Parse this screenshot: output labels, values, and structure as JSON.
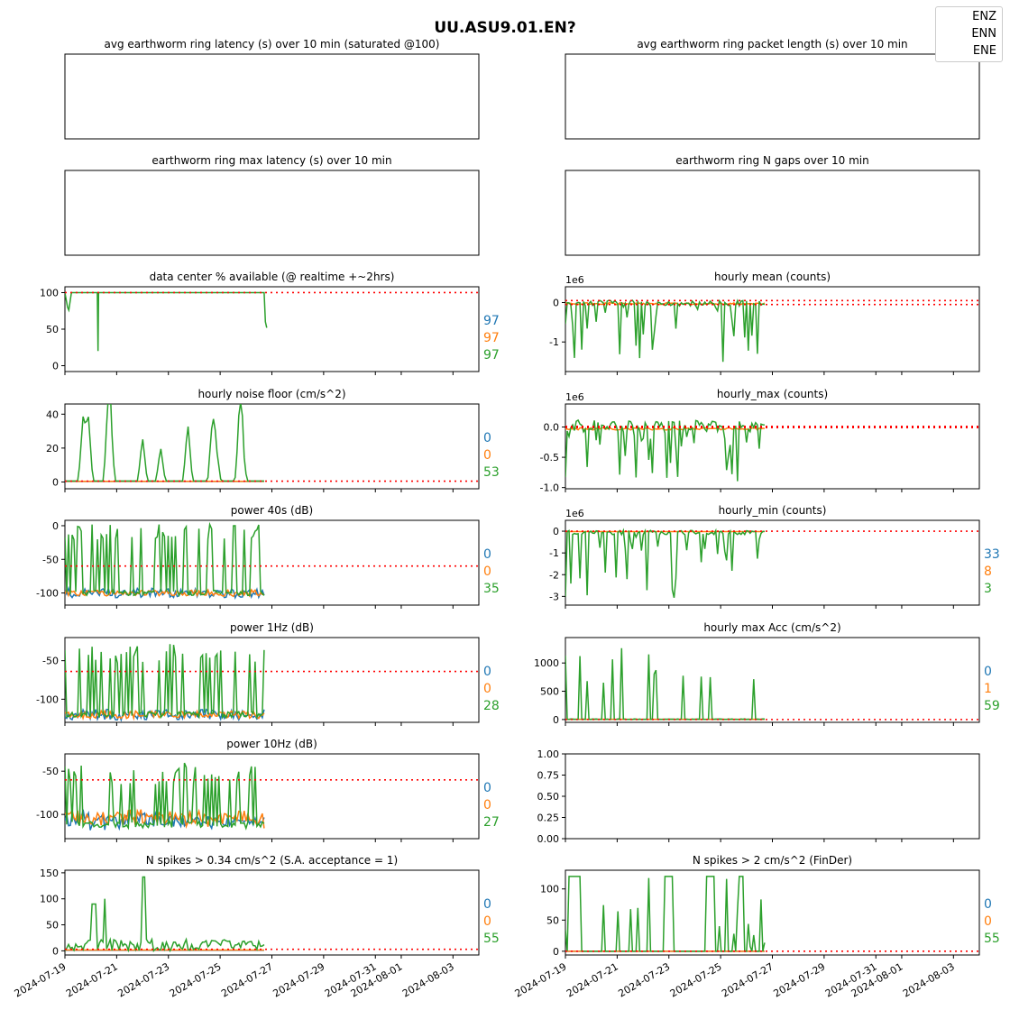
{
  "figure": {
    "suptitle": "UU.ASU9.01.EN?",
    "legend": [
      "ENZ",
      "ENN",
      "ENE"
    ],
    "series_colors": {
      "ENZ": "#1f77b4",
      "ENN": "#ff7f0e",
      "ENE": "#2ca02c",
      "threshold": "#ff0000"
    },
    "date_ticks": [
      "2024-07-19",
      "2024-07-21",
      "2024-07-23",
      "2024-07-25",
      "2024-07-27",
      "2024-07-29",
      "2024-07-31",
      "2024-08-01",
      "2024-08-03"
    ]
  },
  "chart_data": [
    {
      "id": "latency",
      "type": "line",
      "title": "avg earthworm ring latency (s)   over 10 min (saturated @100)",
      "empty": true
    },
    {
      "id": "packet",
      "type": "line",
      "title": "avg earthworm ring packet length (s)   over 10 min",
      "empty": true
    },
    {
      "id": "maxlat",
      "type": "line",
      "title": "earthworm ring max latency (s)   over 10 min",
      "empty": true
    },
    {
      "id": "ngaps",
      "type": "line",
      "title": "earthworm ring N gaps   over 10 min",
      "empty": true
    },
    {
      "id": "avail",
      "type": "line",
      "title": "data center % available (@ realtime +~2hrs)",
      "ylim": [
        -8,
        108
      ],
      "yticks": [
        0,
        50,
        100
      ],
      "threshold": 100,
      "side_values": [
        "97",
        "97",
        "97"
      ],
      "series": [
        {
          "name": "ENE",
          "x": [
            0,
            0.1,
            0.15,
            0.25,
            1.25,
            1.28,
            1.3,
            1.32,
            1.35,
            1.4,
            3,
            5,
            6,
            7.7,
            7.75,
            7.8
          ],
          "y": [
            100,
            80,
            76,
            100,
            100,
            20,
            100,
            100,
            100,
            100,
            100,
            100,
            100,
            100,
            60,
            52
          ]
        }
      ],
      "special": "avail_dip"
    },
    {
      "id": "mean",
      "type": "line",
      "title": "hourly mean (counts)",
      "exponent": "1e6",
      "ylim": [
        -1.75,
        0.4
      ],
      "yticks": [
        0,
        -1
      ],
      "threshold_pair": [
        0.05,
        -0.05
      ],
      "side_values": [],
      "kind": "mean"
    },
    {
      "id": "noise",
      "type": "line",
      "title": "hourly noise floor (cm/s^2)",
      "ylim": [
        -4,
        46
      ],
      "yticks": [
        0,
        20,
        40
      ],
      "threshold": 0.5,
      "side_values": [
        "0",
        "0",
        "53"
      ],
      "kind": "noise"
    },
    {
      "id": "hmax",
      "type": "line",
      "title": "hourly_max (counts)",
      "exponent": "1e6",
      "ylim": [
        -1.02,
        0.38
      ],
      "yticks": [
        0.0,
        -0.5,
        -1.0
      ],
      "threshold_pair": [
        0.01,
        -0.01
      ],
      "side_values": [],
      "kind": "hmax"
    },
    {
      "id": "p40",
      "type": "line",
      "title": "power 40s (dB)",
      "ylim": [
        -118,
        8
      ],
      "yticks": [
        0,
        -50,
        -100
      ],
      "threshold": -60,
      "side_values": [
        "0",
        "0",
        "35"
      ],
      "kind": "p40"
    },
    {
      "id": "hmin",
      "type": "line",
      "title": "hourly_min (counts)",
      "exponent": "1e6",
      "ylim": [
        -3.4,
        0.5
      ],
      "yticks": [
        0,
        -1,
        -2,
        -3
      ],
      "threshold": 0,
      "side_values": [
        "33",
        "8",
        "3"
      ],
      "kind": "hmin"
    },
    {
      "id": "p1",
      "type": "line",
      "title": "power 1Hz (dB)",
      "ylim": [
        -130,
        -20
      ],
      "yticks": [
        -50,
        -100
      ],
      "threshold": -64,
      "side_values": [
        "0",
        "0",
        "28"
      ],
      "kind": "p1"
    },
    {
      "id": "hacc",
      "type": "line",
      "title": "hourly max Acc (cm/s^2)",
      "ylim": [
        -50,
        1450
      ],
      "yticks": [
        0,
        500,
        1000
      ],
      "threshold": 0,
      "side_values": [
        "0",
        "1",
        "59"
      ],
      "kind": "hacc"
    },
    {
      "id": "p10",
      "type": "line",
      "title": "power 10Hz (dB)",
      "ylim": [
        -128,
        -30
      ],
      "yticks": [
        -50,
        -100
      ],
      "threshold": -60,
      "side_values": [
        "0",
        "0",
        "27"
      ],
      "kind": "p10"
    },
    {
      "id": "blank",
      "type": "line",
      "title": "",
      "ylim": [
        0,
        1
      ],
      "yticks": [
        0.0,
        0.25,
        0.5,
        0.75,
        1.0
      ],
      "empty_axes": true
    },
    {
      "id": "sp034",
      "type": "line",
      "title": "N spikes > 0.34 cm/s^2 (S.A. acceptance = 1)",
      "ylim": [
        -8,
        155
      ],
      "yticks": [
        0,
        50,
        100,
        150
      ],
      "threshold": 3,
      "side_values": [
        "0",
        "0",
        "55"
      ],
      "kind": "sp034"
    },
    {
      "id": "sp2",
      "type": "line",
      "title": "N spikes > 2 cm/s^2 (FinDer)",
      "ylim": [
        -6,
        130
      ],
      "yticks": [
        0,
        50,
        100
      ],
      "threshold": 0,
      "side_values": [
        "0",
        "0",
        "55"
      ],
      "kind": "sp2"
    }
  ]
}
